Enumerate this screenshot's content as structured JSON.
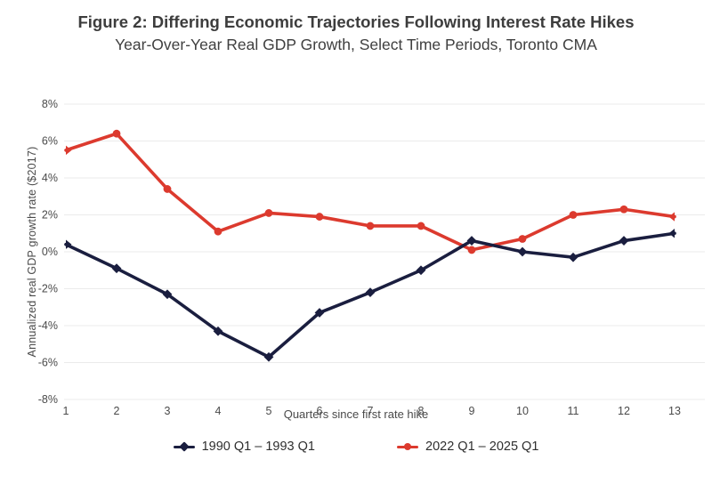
{
  "header": {
    "title": "Figure 2: Differing Economic Trajectories Following Interest Rate Hikes",
    "subtitle": "Year-Over-Year Real GDP Growth, Select Time Periods, Toronto CMA"
  },
  "colors": {
    "background": "#ffffff",
    "title_text": "#3d3d3d",
    "axis_text": "#4a4a4a",
    "tick_text": "#4a4a4a",
    "gridline": "#ebebeb",
    "legend_text": "#2e2e2e",
    "series_navy": "#1a1e3f",
    "series_red": "#dc3a2e"
  },
  "chart_data": {
    "type": "line",
    "title": "Figure 2: Differing Economic Trajectories Following Interest Rate Hikes",
    "subtitle": "Year-Over-Year Real GDP Growth, Select Time Periods, Toronto CMA",
    "xlabel": "Quarters since first rate hike",
    "ylabel": "Annualized real GDP growth rate ($2017)",
    "x": [
      1,
      2,
      3,
      4,
      5,
      6,
      7,
      8,
      9,
      10,
      11,
      12,
      13
    ],
    "ylim": [
      -8,
      8
    ],
    "ytick_values": [
      8,
      6,
      4,
      2,
      0,
      -2,
      -4,
      -6,
      -8
    ],
    "ytick_labels": [
      "8%",
      "6%",
      "4%",
      "2%",
      "0%",
      "-2%",
      "-4%",
      "-6%",
      "-8%"
    ],
    "grid": "horizontal",
    "legend_position": "bottom",
    "series": [
      {
        "name": "1990 Q1 – 1993 Q1",
        "color": "#1a1e3f",
        "marker": "diamond",
        "values": [
          0.4,
          -0.9,
          -2.3,
          -4.3,
          -5.7,
          -3.3,
          -2.2,
          -1.0,
          0.6,
          0.0,
          -0.3,
          0.6,
          1.0
        ]
      },
      {
        "name": "2022 Q1 – 2025 Q1",
        "color": "#dc3a2e",
        "marker": "circle",
        "values": [
          5.5,
          6.4,
          3.4,
          1.1,
          2.1,
          1.9,
          1.4,
          1.4,
          0.1,
          0.7,
          2.0,
          2.3,
          1.9
        ]
      }
    ]
  }
}
